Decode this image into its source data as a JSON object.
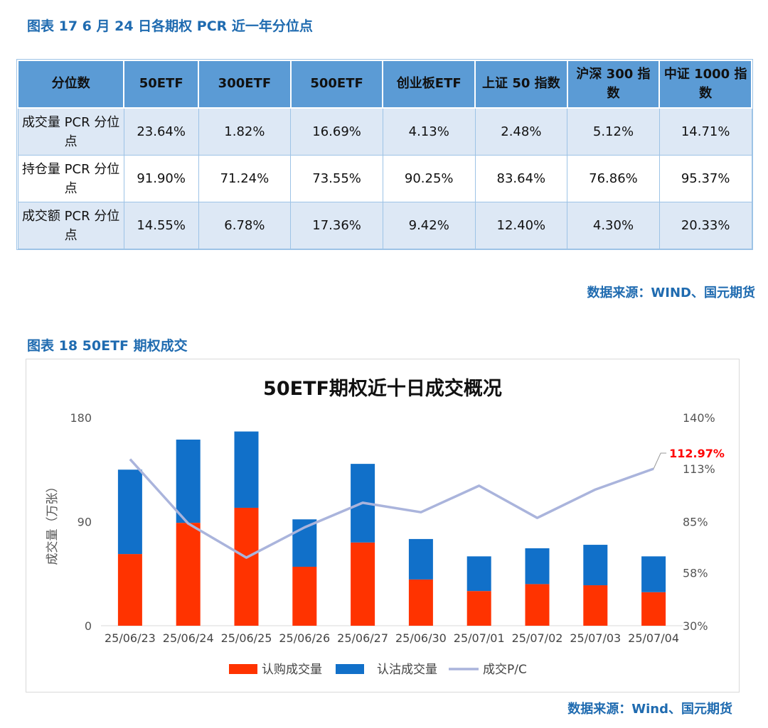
{
  "table_caption": "图表 17 6 月 24 日各期权 PCR 近一年分位点",
  "table": {
    "headers": [
      "分位数",
      "50ETF",
      "300ETF",
      "500ETF",
      "创业板ETF",
      "上证 50 指数",
      "沪深 300 指数",
      "中证 1000 指数"
    ],
    "rows": [
      {
        "label": "成交量 PCR 分位点",
        "values": [
          "23.64%",
          "1.82%",
          "16.69%",
          "4.13%",
          "2.48%",
          "5.12%",
          "14.71%"
        ]
      },
      {
        "label": "持仓量 PCR 分位点",
        "values": [
          "91.90%",
          "71.24%",
          "73.55%",
          "90.25%",
          "83.64%",
          "76.86%",
          "95.37%"
        ]
      },
      {
        "label": "成交额 PCR 分位点",
        "values": [
          "14.55%",
          "6.78%",
          "17.36%",
          "9.42%",
          "12.40%",
          "4.30%",
          "20.33%"
        ]
      }
    ]
  },
  "table_source": "数据来源：WIND、国元期货",
  "chart_caption": "图表 18 50ETF 期权成交",
  "chart_source": "数据来源：Wind、国元期货",
  "colors": {
    "call": "#ff3300",
    "put": "#1170c9",
    "ratio": "#aab4dc",
    "header": "#5b9bd5",
    "caption": "#1f6bb0",
    "callout": "#ff0000"
  },
  "chart_data": {
    "type": "bar",
    "stacked": true,
    "title": "50ETF期权近十日成交概况",
    "ylabel": "成交量（万张）",
    "ylim": [
      0,
      180
    ],
    "y_ticks": [
      "0",
      "90",
      "180"
    ],
    "y2lim": [
      30,
      140
    ],
    "y2_ticks": [
      "30%",
      "58%",
      "85%",
      "113%",
      "140%"
    ],
    "categories": [
      "25/06/23",
      "25/06/24",
      "25/06/25",
      "25/06/26",
      "25/06/27",
      "25/06/30",
      "25/07/01",
      "25/07/02",
      "25/07/03",
      "25/07/04"
    ],
    "series": [
      {
        "name": "认购成交量",
        "values": [
          62,
          89,
          102,
          51,
          72,
          40,
          30,
          36,
          35,
          29
        ]
      },
      {
        "name": "认沽成交量",
        "values": [
          73,
          72,
          66,
          41,
          68,
          35,
          30,
          31,
          35,
          31
        ]
      },
      {
        "name": "成交P/C",
        "axis": "right",
        "values": [
          118,
          84,
          66,
          82,
          95,
          90,
          104,
          87,
          102,
          112.97
        ]
      }
    ],
    "annotation": "112.97%",
    "legend_position": "bottom"
  }
}
